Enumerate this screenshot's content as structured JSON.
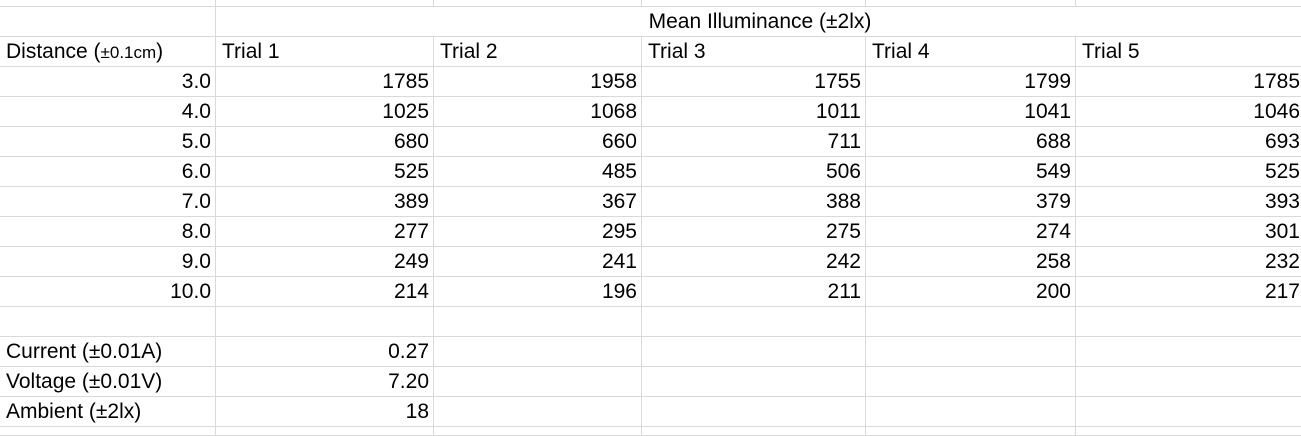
{
  "sheet": {
    "merged_header": "Mean Illuminance (±2lx)",
    "distance_header_main": "Distance (",
    "distance_header_unit": "±0.1cm",
    "distance_header_close": ")",
    "trial_headers": [
      "Trial 1",
      "Trial 2",
      "Trial 3",
      "Trial 4",
      "Trial 5"
    ],
    "rows": [
      {
        "distance": "3.0",
        "values": [
          "1785",
          "1958",
          "1755",
          "1799",
          "1785"
        ]
      },
      {
        "distance": "4.0",
        "values": [
          "1025",
          "1068",
          "1011",
          "1041",
          "1046"
        ]
      },
      {
        "distance": "5.0",
        "values": [
          "680",
          "660",
          "711",
          "688",
          "693"
        ]
      },
      {
        "distance": "6.0",
        "values": [
          "525",
          "485",
          "506",
          "549",
          "525"
        ]
      },
      {
        "distance": "7.0",
        "values": [
          "389",
          "367",
          "388",
          "379",
          "393"
        ]
      },
      {
        "distance": "8.0",
        "values": [
          "277",
          "295",
          "275",
          "274",
          "301"
        ]
      },
      {
        "distance": "9.0",
        "values": [
          "249",
          "241",
          "242",
          "258",
          "232"
        ]
      },
      {
        "distance": "10.0",
        "values": [
          "214",
          "196",
          "211",
          "200",
          "217"
        ]
      }
    ],
    "constants": [
      {
        "label": "Current (±0.01A)",
        "value": "0.27"
      },
      {
        "label": "Voltage (±0.01V)",
        "value": "7.20"
      },
      {
        "label": "Ambient (±2lx)",
        "value": "18"
      }
    ]
  },
  "colors": {
    "gridline": "#d9d9d9",
    "text": "#000000",
    "background": "#ffffff"
  }
}
